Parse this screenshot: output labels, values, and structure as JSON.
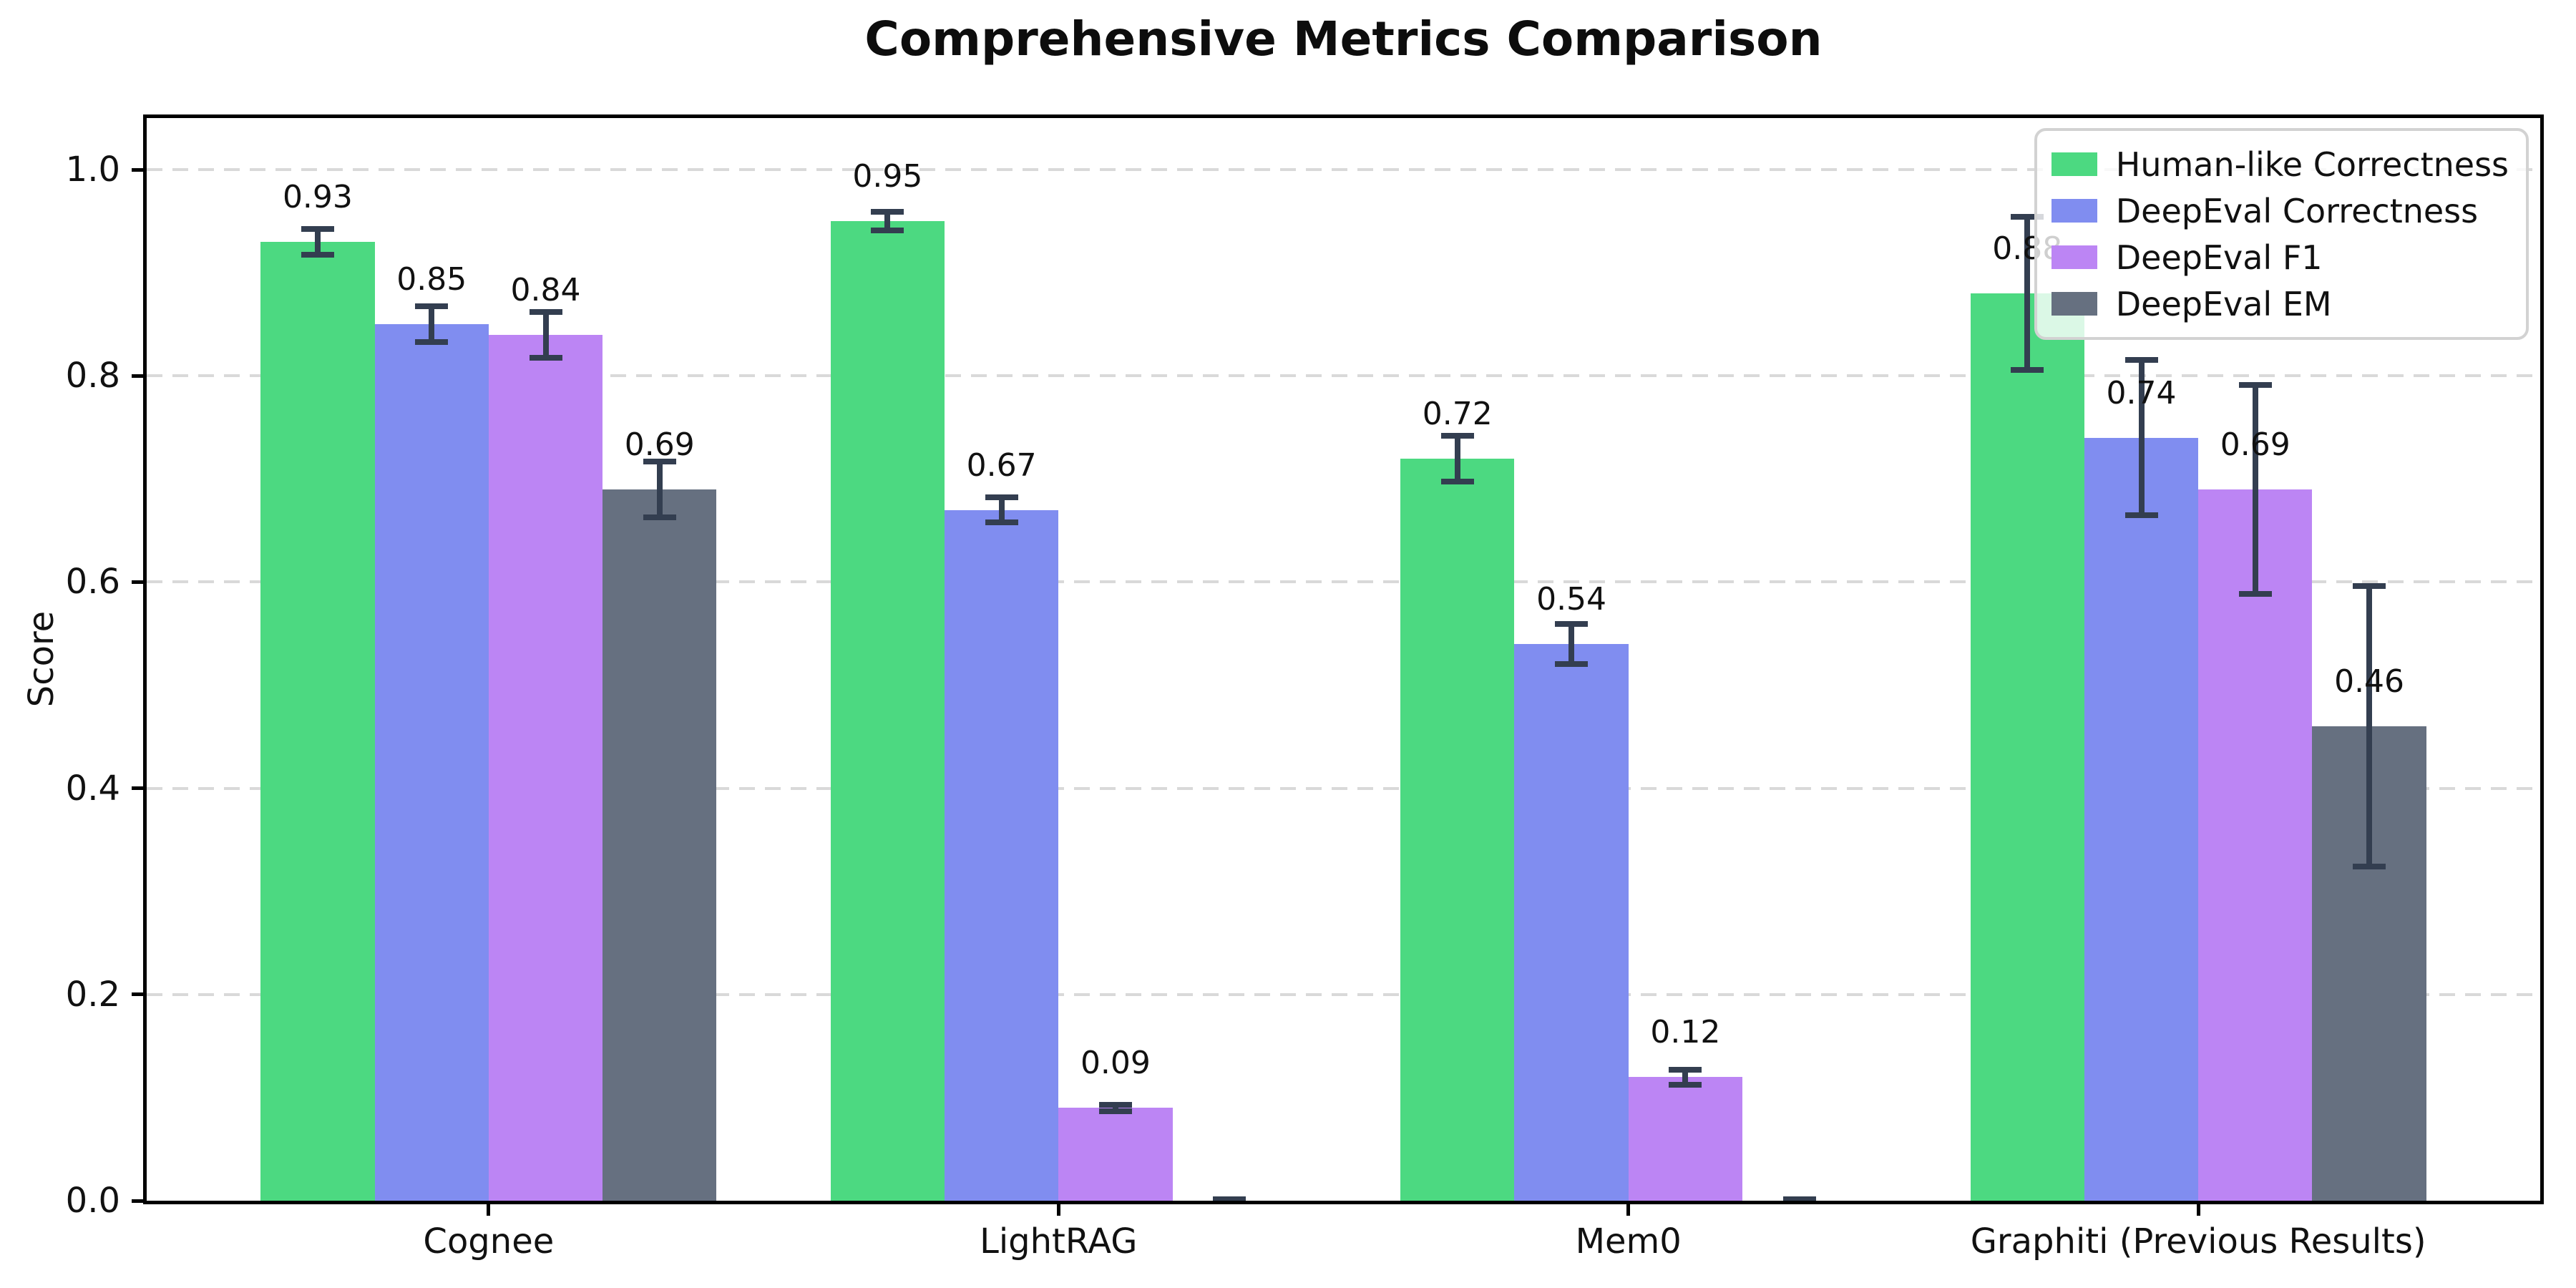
{
  "chart_data": {
    "type": "bar",
    "title": "Comprehensive Metrics Comparison",
    "ylabel": "Score",
    "categories": [
      "Cognee",
      "LightRAG",
      "Mem0",
      "Graphiti (Previous Results)"
    ],
    "series": [
      {
        "name": "Human-like Correctness",
        "color": "#4cd981",
        "values": [
          0.93,
          0.95,
          0.72,
          0.88
        ],
        "errors": [
          0.015,
          0.012,
          0.025,
          0.077
        ],
        "labels": [
          "0.93",
          "0.95",
          "0.72",
          "0.88"
        ]
      },
      {
        "name": "DeepEval Correctness",
        "color": "#808df0",
        "values": [
          0.85,
          0.67,
          0.54,
          0.74
        ],
        "errors": [
          0.02,
          0.015,
          0.022,
          0.078
        ],
        "labels": [
          "0.85",
          "0.67",
          "0.54",
          "0.74"
        ]
      },
      {
        "name": "DeepEval F1",
        "color": "#bc85f4",
        "values": [
          0.84,
          0.09,
          0.12,
          0.69
        ],
        "errors": [
          0.025,
          0.006,
          0.01,
          0.104
        ],
        "labels": [
          "0.84",
          "0.09",
          "0.12",
          "0.69"
        ]
      },
      {
        "name": "DeepEval EM",
        "color": "#667080",
        "values": [
          0.69,
          0.0,
          0.0,
          0.46
        ],
        "errors": [
          0.03,
          0.004,
          0.004,
          0.139
        ],
        "labels": [
          "0.69",
          "",
          "",
          "0.46"
        ]
      }
    ],
    "yticks": [
      "0.0",
      "0.2",
      "0.4",
      "0.6",
      "0.8",
      "1.0"
    ],
    "ylim": [
      0.0,
      1.05
    ],
    "grid": "horizontal-dashed",
    "legend_position": "upper-right",
    "colors": {
      "gridline": "#d9d9d9",
      "errorbar": "#333e50",
      "spine": "#000000",
      "background": "#ffffff"
    }
  }
}
